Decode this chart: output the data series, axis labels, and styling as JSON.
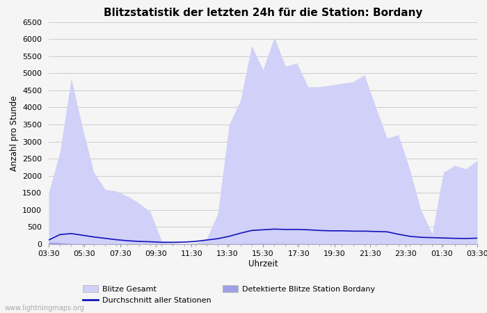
{
  "title": "Blitzstatistik der letzten 24h für die Station: Bordany",
  "xlabel": "Uhrzeit",
  "ylabel": "Anzahl pro Stunde",
  "watermark": "www.lightningmaps.org",
  "ylim": [
    0,
    6500
  ],
  "yticks": [
    0,
    500,
    1000,
    1500,
    2000,
    2500,
    3000,
    3500,
    4000,
    4500,
    5000,
    5500,
    6000,
    6500
  ],
  "xtick_labels": [
    "03:30",
    "05:30",
    "07:30",
    "09:30",
    "11:30",
    "13:30",
    "15:30",
    "17:30",
    "19:30",
    "21:30",
    "23:30",
    "01:30",
    "03:30"
  ],
  "bg_color": "#f5f5f5",
  "plot_bg_color": "#f5f5f5",
  "fill_gesamt_color": "#d0d0f8",
  "fill_station_color": "#a0a0e8",
  "line_color": "#1111bb",
  "grid_color": "#cccccc",
  "blitze_gesamt": [
    1500,
    2700,
    4850,
    3400,
    2100,
    1600,
    1550,
    1400,
    1200,
    950,
    100,
    50,
    20,
    30,
    150,
    900,
    3500,
    4200,
    5800,
    5100,
    6050,
    5200,
    5300,
    4600,
    4600,
    4650,
    4700,
    4750,
    4950,
    4000,
    3100,
    3200,
    2200,
    1000,
    300,
    2100,
    2300,
    2200,
    2450
  ],
  "blitze_station": [
    60,
    40,
    15,
    8,
    6,
    8,
    6,
    5,
    4,
    3,
    2,
    2,
    2,
    2,
    3,
    5,
    8,
    12,
    20,
    18,
    15,
    15,
    14,
    12,
    11,
    10,
    9,
    9,
    8,
    7,
    6,
    6,
    5,
    4,
    3,
    4,
    4,
    5,
    5
  ],
  "durchschnitt": [
    120,
    280,
    310,
    260,
    210,
    170,
    130,
    100,
    80,
    70,
    55,
    55,
    60,
    80,
    120,
    160,
    230,
    320,
    400,
    420,
    440,
    430,
    430,
    420,
    400,
    390,
    390,
    380,
    380,
    370,
    360,
    290,
    230,
    200,
    190,
    180,
    170,
    165,
    175
  ],
  "n_points": 39,
  "legend_gesamt_label": "Blitze Gesamt",
  "legend_station_label": "Detektierte Blitze Station Bordany",
  "legend_avg_label": "Durchschnitt aller Stationen"
}
